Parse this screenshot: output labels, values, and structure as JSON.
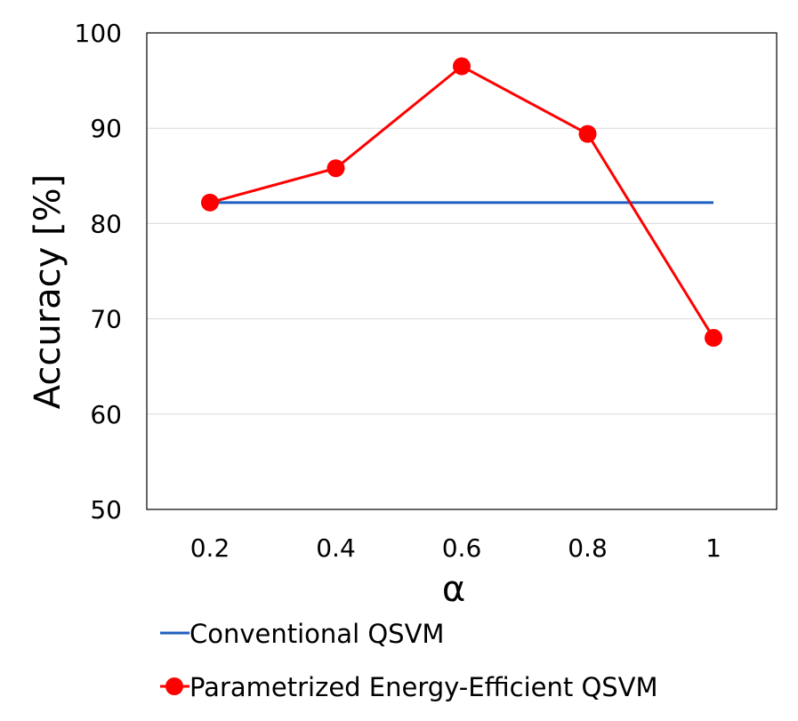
{
  "chart_data": {
    "type": "line",
    "title": "",
    "xlabel": "α",
    "ylabel": "Accuracy [%]",
    "categories": [
      "0.2",
      "0.4",
      "0.6",
      "0.8",
      "1"
    ],
    "ylim": [
      50,
      100
    ],
    "yticks": [
      "50",
      "60",
      "70",
      "80",
      "90",
      "100"
    ],
    "grid": true,
    "legend_position": "bottom",
    "series": [
      {
        "name": "Conventional QSVM",
        "values": [
          82.2,
          82.2,
          82.2,
          82.2,
          82.2
        ],
        "color": "#1f5fbf",
        "marker": "none"
      },
      {
        "name": "Parametrized Energy-Efficient QSVM",
        "values": [
          82.2,
          85.8,
          96.5,
          89.4,
          68.0
        ],
        "color": "#ff0000",
        "marker": "circle"
      }
    ]
  }
}
